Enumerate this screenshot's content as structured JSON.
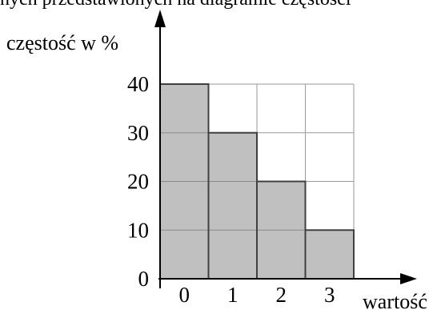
{
  "page": {
    "caption": "nych przedstawionych na diagramie częstości"
  },
  "chart_data": {
    "type": "bar",
    "categories": [
      "0",
      "1",
      "2",
      "3"
    ],
    "values": [
      40,
      30,
      20,
      10
    ],
    "title": "",
    "xlabel": "wartość",
    "ylabel": "częstość w %",
    "ylim": [
      0,
      40
    ],
    "yticks": [
      0,
      10,
      20,
      30,
      40
    ],
    "grid": true,
    "colors": {
      "bar_fill": "#c0c0c0",
      "bar_stroke": "#404040",
      "grid": "#9a9a9a",
      "axis": "#000000"
    }
  }
}
